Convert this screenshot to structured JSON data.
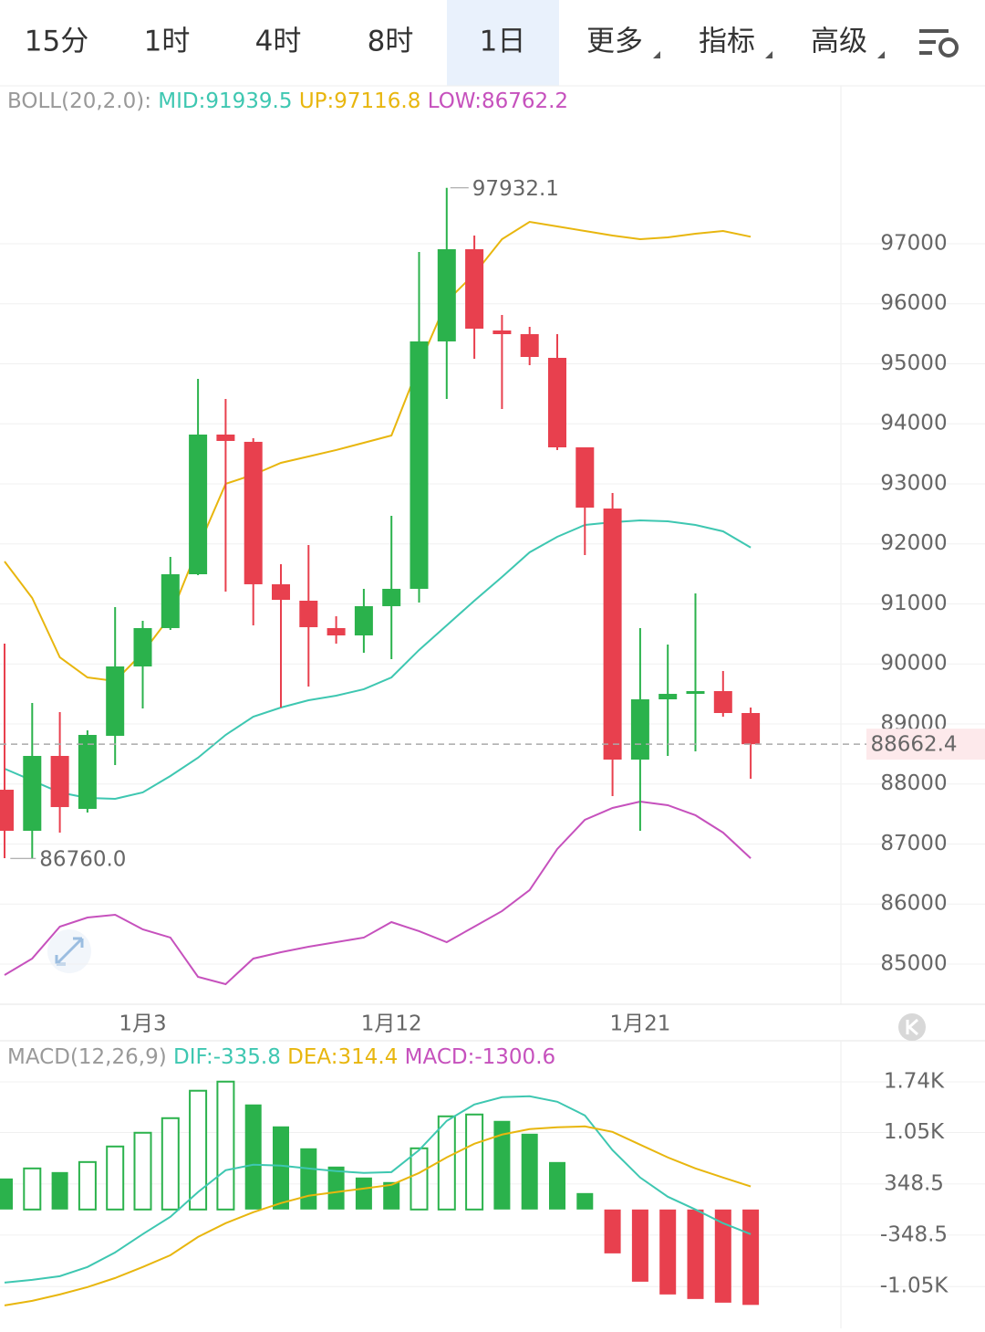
{
  "tabs": [
    "15分",
    "1时",
    "4时",
    "8时",
    "1日",
    "更多",
    "指标",
    "高级"
  ],
  "active_tab": 4,
  "chart_data": [
    {
      "type": "candlestick",
      "legend_title": "BOLL(20,2.0):",
      "high_label": "97932.1",
      "low_label": "86760.0",
      "categories": [
        null,
        null,
        null,
        null,
        null,
        "1月3",
        null,
        null,
        null,
        null,
        null,
        null,
        null,
        null,
        "1月12",
        null,
        null,
        null,
        null,
        null,
        null,
        null,
        null,
        "1月21",
        null,
        null,
        null,
        null
      ],
      "open": [
        87904,
        87220,
        88467,
        87585,
        88802,
        89958,
        90597,
        91494,
        93821,
        93700,
        91327,
        91053,
        90597,
        90475,
        90962,
        91251,
        95373,
        96909,
        95555,
        95494,
        95099,
        93608,
        92589,
        88406,
        89410,
        89501,
        89547,
        89182
      ],
      "high": [
        90338,
        89349,
        89197,
        88893,
        90946,
        90718,
        91783,
        94749,
        94414,
        93760,
        91661,
        91981,
        90794,
        91251,
        92467,
        96863,
        97932.1,
        97137,
        95814,
        95616,
        95494,
        93608,
        92848,
        90597,
        90323,
        91175,
        89882,
        89273
      ],
      "low": [
        86764,
        86760,
        87190,
        87524,
        88315,
        89258,
        90566,
        91479,
        91205,
        90642,
        89273,
        89623,
        90338,
        90186,
        90079,
        91022,
        94414,
        95084,
        94247,
        94977,
        93563,
        91814,
        87798,
        87220,
        88467,
        88543,
        89121,
        88087
      ],
      "close": [
        87220,
        88467,
        87615,
        88817,
        89958,
        90597,
        91494,
        93821,
        93715,
        91327,
        91068,
        90612,
        90475,
        90962,
        91251,
        95373,
        96909,
        95585,
        95494,
        95114,
        93608,
        92604,
        88406,
        89410,
        89501,
        89547,
        89182,
        88662.4
      ],
      "up_color": "#2bb24c",
      "down_color": "#e8404e",
      "series": [
        {
          "name": "MID:",
          "color": "#3ec7b1",
          "values": [
            88254,
            88057,
            87859,
            87768,
            87752,
            87859,
            88133,
            88437,
            88817,
            89121,
            89273,
            89395,
            89471,
            89578,
            89775,
            90232,
            90642,
            91053,
            91448,
            91859,
            92118,
            92315,
            92361,
            92391,
            92376,
            92315,
            92209,
            91939.5
          ]
        },
        {
          "name": "UP:",
          "color": "#e8b60e",
          "values": [
            91707,
            91099,
            90110,
            89775,
            89715,
            90186,
            90794,
            91935,
            93000,
            93152,
            93350,
            93456,
            93563,
            93684,
            93806,
            94977,
            96042,
            96498,
            97076,
            97365,
            97289,
            97213,
            97137,
            97076,
            97106,
            97167,
            97213,
            97116.8
          ]
        },
        {
          "name": "LOW:",
          "color": "#c651bd",
          "values": [
            84817,
            85091,
            85623,
            85775,
            85821,
            85578,
            85441,
            84787,
            84665,
            85091,
            85197,
            85288,
            85364,
            85441,
            85699,
            85547,
            85364,
            85623,
            85882,
            86232,
            86916,
            87403,
            87600,
            87707,
            87646,
            87479,
            87190,
            86762.2
          ]
        }
      ],
      "ylim": [
        84330,
        99540
      ],
      "yticks": [
        85000,
        86000,
        87000,
        88000,
        89000,
        90000,
        91000,
        92000,
        93000,
        94000,
        95000,
        96000,
        97000
      ],
      "grid": true
    },
    {
      "type": "macd",
      "legend_title": "MACD(12,26,9)",
      "histogram_name": "MACD:",
      "values": [
        423,
        560,
        510,
        647,
        859,
        1046,
        1245,
        1619,
        1743,
        1432,
        1133,
        834,
        585,
        436,
        374,
        834,
        1270,
        1295,
        1208,
        1033,
        647,
        224,
        -598,
        -984,
        -1158,
        -1220,
        -1270,
        -1300.6
      ],
      "up_color": "#2bb24c",
      "down_color": "#e8404e",
      "series": [
        {
          "name": "DIF:",
          "color": "#3ec7b1",
          "values": [
            -996,
            -959,
            -909,
            -784,
            -585,
            -336,
            -100,
            237,
            535,
            610,
            598,
            560,
            523,
            498,
            510,
            809,
            1208,
            1432,
            1531,
            1544,
            1469,
            1282,
            809,
            436,
            174,
            0,
            -187,
            -335.8
          ]
        },
        {
          "name": "DEA:",
          "color": "#e8b60e",
          "values": [
            -1307,
            -1245,
            -1158,
            -1058,
            -934,
            -784,
            -623,
            -374,
            -187,
            -37,
            87,
            187,
            237,
            286,
            336,
            498,
            710,
            896,
            1021,
            1096,
            1121,
            1133,
            1058,
            884,
            710,
            560,
            436,
            314.4
          ]
        }
      ],
      "ylim": [
        -1620,
        2300
      ],
      "yticks": [
        {
          "value": 1740,
          "label": "1.74K"
        },
        {
          "value": 1050,
          "label": "1.05K"
        },
        348.5,
        -348.5,
        {
          "value": -1050,
          "label": "-1.05K"
        }
      ],
      "grid": true
    }
  ]
}
